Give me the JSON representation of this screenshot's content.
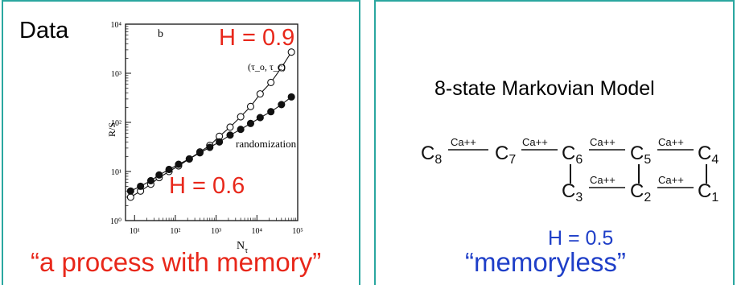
{
  "left_panel": {
    "data_label": "Data",
    "hurst_high": "H = 0.9",
    "hurst_low": "H = 0.6",
    "caption": "“a process with memory”"
  },
  "chart_data": {
    "type": "scatter",
    "panel_letter": "b",
    "xlabel": "N",
    "xlabel_subscript": "τ",
    "ylabel": "R/S",
    "x_scale": "log",
    "y_scale": "log",
    "xlim": [
      6,
      100000
    ],
    "ylim": [
      1,
      10000
    ],
    "xtick_labels": [
      "10¹",
      "10²",
      "10³",
      "10⁴",
      "10⁵"
    ],
    "ytick_labels": [
      "10⁰",
      "10¹",
      "10²",
      "10³",
      "10⁴"
    ],
    "annotations": [
      "(τ_o, τ_c)",
      "randomization"
    ],
    "series": [
      {
        "name": "(τ_o, τ_c)",
        "marker": "open",
        "x": [
          8,
          14,
          25,
          40,
          70,
          120,
          220,
          400,
          700,
          1200,
          2200,
          4000,
          7000,
          12000,
          22000,
          40000,
          70000
        ],
        "y": [
          3,
          4,
          5.5,
          7.5,
          10,
          13,
          18,
          25,
          34,
          52,
          80,
          130,
          210,
          380,
          650,
          1300,
          2700
        ]
      },
      {
        "name": "randomization",
        "marker": "filled",
        "x": [
          8,
          14,
          25,
          40,
          70,
          120,
          220,
          400,
          700,
          1200,
          2200,
          4000,
          7000,
          12000,
          22000,
          40000,
          70000
        ],
        "y": [
          4,
          5,
          6.5,
          8.5,
          11,
          14,
          18,
          24,
          31,
          40,
          55,
          72,
          95,
          125,
          165,
          230,
          330
        ]
      }
    ]
  },
  "right_panel": {
    "title": "8-state Markovian Model",
    "hurst": "H = 0.5",
    "caption": "“memoryless”",
    "ion_label": "Ca++",
    "states_top": [
      "C8",
      "C7",
      "C6",
      "C5",
      "C4"
    ],
    "states_bottom": [
      "C3",
      "C2",
      "C1"
    ]
  },
  "colors": {
    "panel_border": "#2aa7a0",
    "red_text": "#e8271a",
    "blue_text": "#1f3fc8"
  }
}
